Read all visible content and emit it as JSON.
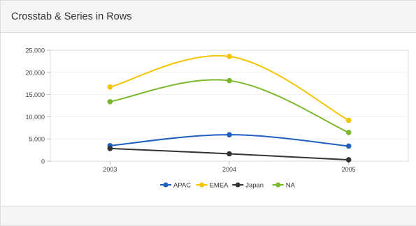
{
  "panel": {
    "title": "Crosstab & Series in Rows"
  },
  "chart_data": {
    "type": "line",
    "title": "",
    "xlabel": "",
    "ylabel": "",
    "categories": [
      "2003",
      "2004",
      "2005"
    ],
    "ylim": [
      0,
      25000
    ],
    "yticks": [
      0,
      5000,
      10000,
      15000,
      20000,
      25000
    ],
    "ytick_labels": [
      "0",
      "5,000",
      "10,000",
      "15,000",
      "20,000",
      "25,000"
    ],
    "grid": true,
    "legend_position": "bottom",
    "smooth": true,
    "series": [
      {
        "name": "APAC",
        "color": "#1f5fbf",
        "values": [
          3500,
          5950,
          3400
        ]
      },
      {
        "name": "EMEA",
        "color": "#f5c400",
        "values": [
          16700,
          23600,
          9200
        ]
      },
      {
        "name": "Japan",
        "color": "#333333",
        "values": [
          2850,
          1650,
          300
        ]
      },
      {
        "name": "NA",
        "color": "#7ab82a",
        "values": [
          13400,
          18150,
          6450
        ]
      }
    ]
  }
}
